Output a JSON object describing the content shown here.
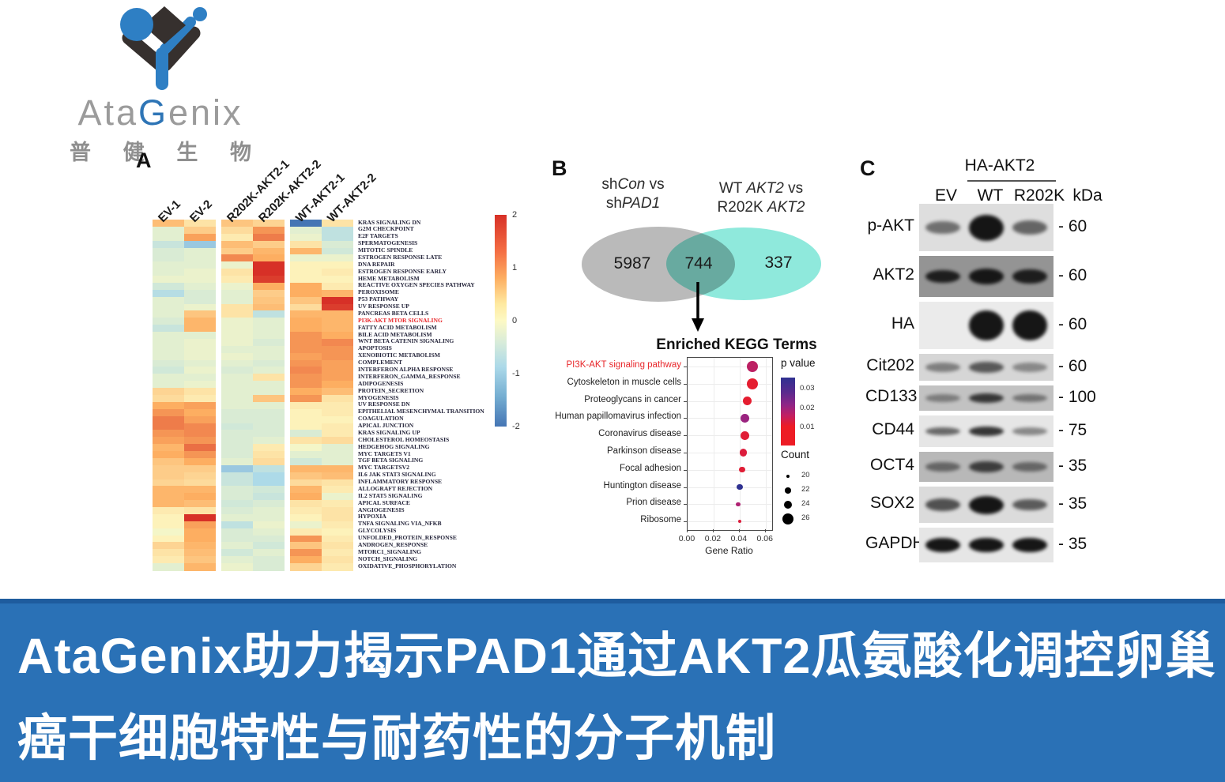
{
  "logo": {
    "brand_pre": "Ata",
    "brand_g": "G",
    "brand_suffix": "enix",
    "chinese_chars": [
      "普",
      "健",
      "生",
      "物"
    ]
  },
  "panels": {
    "a": "A",
    "b": "B",
    "c": "C"
  },
  "colors": {
    "banner_blue": "#2a71b6",
    "banner_edge": "#1e5c9e",
    "logo_blue": "#2e7fc4",
    "logo_dark": "#36302e",
    "highlight_red": "#e8262a",
    "venn_left_gray": "#bababa",
    "venn_right_teal": "#8fe9dc"
  },
  "chart_data": [
    {
      "type": "heatmap",
      "title": "GSEA hallmark heatmap",
      "columns": [
        "EV-1",
        "EV-2",
        "R202K-AKT2-1",
        "R202K-AKT2-2",
        "WT-AKT2-1",
        "WT-AKT2-2"
      ],
      "rows": [
        "KRAS SIGNALING DN",
        "G2M CHECKPOINT",
        "E2F TARGETS",
        "SPERMATOGENESIS",
        "MITOTIC SPINDLE",
        "ESTROGEN RESPONSE LATE",
        "DNA REPAIR",
        "ESTROGEN RESPONSE EARLY",
        "HEME METABOLISM",
        "REACTIVE OXYGEN SPECIES PATHWAY",
        "PEROXISOME",
        "P53 PATHWAY",
        "UV RESPONSE UP",
        "PANCREAS BETA CELLS",
        "PI3K-AKT MTOR SIGNALING",
        "FATTY ACID METABOLISM",
        "BILE ACID METABOLISM",
        "WNT BETA CATENIN SIGNALING",
        "APOPTOSIS",
        "XENOBIOTIC METABOLISM",
        "COMPLEMENT",
        "INTERFERON ALPHA RESPONSE",
        "INTERFERON_GAMMA_RESPONSE",
        "ADIPOGENESIS",
        "PROTEIN_SECRETION",
        "MYOGENESIS",
        "UV RESPONSE DN",
        "EPITHELIAL MESENCHYMAL TRANSITION",
        "COAGULATION",
        "APICAL JUNCTION",
        "KRAS SIGNALING UP",
        "CHOLESTEROL HOMEOSTASIS",
        "HEDGEHOG SIGNALING",
        "MYC TARGETS V1",
        "TGF BETA SIGNALING",
        "MYC TARGETSV2",
        "IL6 JAK STAT3 SIGNALING",
        "INFLAMMATORY RESPONSE",
        "ALLOGRAFT REJECTION",
        "IL2 STAT5 SIGNALING",
        "APICAL SURFACE",
        "ANGIOGENESIS",
        "HYPOXIA",
        "TNFA SIGNALING VIA_NFKB",
        "GLYCOLYSIS",
        "UNFOLDED_PROTEIN_RESPONSE",
        "ANDROGEN_RESPONSE",
        "MTORC1_SIGNALING",
        "NOTCH_SIGNALING",
        "OXIDATIVE_PHOSPHORYLATION"
      ],
      "highlight_row": "PI3K-AKT MTOR SIGNALING",
      "value_range": [
        -2,
        2
      ],
      "colorbar_ticks": [
        "2",
        "1",
        "0",
        "-1",
        "-2"
      ],
      "values": [
        [
          0.8,
          0.3,
          0.7,
          0.5,
          -2.0,
          0.3
        ],
        [
          -0.3,
          0.6,
          0.4,
          1.2,
          -0.3,
          -0.7
        ],
        [
          -0.3,
          1.1,
          0.2,
          1.4,
          -0.2,
          -0.7
        ],
        [
          -0.6,
          -1.1,
          0.8,
          0.6,
          0.3,
          -0.4
        ],
        [
          -0.4,
          -0.3,
          0.6,
          0.9,
          0.9,
          -0.5
        ],
        [
          -0.4,
          -0.3,
          1.3,
          1.0,
          -0.2,
          -0.2
        ],
        [
          -0.3,
          -0.3,
          -0.2,
          2.0,
          0.1,
          0.1
        ],
        [
          -0.3,
          -0.2,
          0.3,
          2.0,
          0.1,
          0.2
        ],
        [
          -0.2,
          -0.2,
          0.2,
          1.9,
          0.1,
          0.1
        ],
        [
          -0.5,
          -0.3,
          -0.2,
          1.0,
          1.0,
          0.2
        ],
        [
          -0.8,
          -0.4,
          -0.3,
          0.6,
          1.0,
          0.9
        ],
        [
          -0.3,
          -0.4,
          -0.3,
          0.7,
          0.7,
          2.0
        ],
        [
          -0.3,
          -0.2,
          0.3,
          0.8,
          0.4,
          1.9
        ],
        [
          -0.3,
          0.7,
          0.3,
          -0.7,
          0.9,
          0.9
        ],
        [
          -0.4,
          0.9,
          -0.2,
          -0.3,
          1.0,
          0.9
        ],
        [
          -0.6,
          0.9,
          -0.2,
          -0.3,
          1.0,
          0.9
        ],
        [
          -0.3,
          -0.3,
          -0.2,
          -0.3,
          1.2,
          1.0
        ],
        [
          -0.3,
          -0.2,
          -0.2,
          -0.4,
          1.2,
          1.3
        ],
        [
          -0.3,
          -0.2,
          -0.3,
          -0.3,
          1.2,
          1.2
        ],
        [
          -0.3,
          -0.2,
          -0.2,
          -0.3,
          1.1,
          1.2
        ],
        [
          -0.4,
          -0.3,
          -0.3,
          -0.4,
          1.2,
          1.1
        ],
        [
          -0.5,
          -0.2,
          -0.4,
          -0.3,
          1.3,
          1.1
        ],
        [
          -0.3,
          -0.3,
          -0.3,
          0.3,
          1.2,
          1.1
        ],
        [
          -0.3,
          -0.2,
          -0.3,
          -0.3,
          1.2,
          1.0
        ],
        [
          0.5,
          0.3,
          -0.3,
          -0.3,
          1.0,
          0.8
        ],
        [
          0.4,
          0.2,
          -0.3,
          0.7,
          1.2,
          0.3
        ],
        [
          1.0,
          1.1,
          -0.3,
          -0.3,
          0.2,
          0.2
        ],
        [
          1.2,
          1.0,
          -0.4,
          -0.4,
          0.1,
          0.2
        ],
        [
          1.4,
          1.1,
          -0.4,
          -0.4,
          0.1,
          0.1
        ],
        [
          1.4,
          1.3,
          -0.5,
          -0.4,
          0.1,
          0.2
        ],
        [
          1.2,
          1.3,
          -0.4,
          -0.4,
          -0.4,
          0.2
        ],
        [
          1.1,
          1.2,
          -0.4,
          -0.3,
          0.3,
          0.4
        ],
        [
          0.9,
          1.5,
          -0.4,
          0.2,
          -0.1,
          -0.3
        ],
        [
          1.0,
          1.2,
          -0.4,
          0.3,
          -0.3,
          -0.3
        ],
        [
          0.7,
          1.0,
          -0.3,
          0.4,
          -0.5,
          -0.3
        ],
        [
          0.6,
          0.6,
          -1.1,
          -0.7,
          0.9,
          0.9
        ],
        [
          0.6,
          0.5,
          -0.6,
          -0.9,
          0.7,
          0.8
        ],
        [
          0.5,
          0.4,
          -0.6,
          -0.9,
          0.4,
          0.3
        ],
        [
          0.9,
          0.9,
          -0.4,
          -0.5,
          0.9,
          0.2
        ],
        [
          0.9,
          1.0,
          -0.4,
          -0.6,
          1.0,
          -0.2
        ],
        [
          0.9,
          0.8,
          -0.5,
          -0.4,
          0.3,
          0.2
        ],
        [
          0.2,
          0.3,
          -0.4,
          -0.3,
          0.2,
          0.3
        ],
        [
          0.1,
          2.0,
          -0.3,
          -0.3,
          0.1,
          0.3
        ],
        [
          0.1,
          1.1,
          -0.7,
          -0.2,
          -0.2,
          0.2
        ],
        [
          -0.1,
          1.0,
          -0.4,
          -0.3,
          0.2,
          0.1
        ],
        [
          0.1,
          1.0,
          -0.4,
          -0.4,
          1.2,
          0.2
        ],
        [
          0.5,
          0.9,
          -0.3,
          -0.5,
          0.7,
          0.3
        ],
        [
          0.3,
          0.8,
          -0.5,
          -0.3,
          1.2,
          0.2
        ],
        [
          0.2,
          0.7,
          -0.3,
          -0.4,
          1.0,
          0.3
        ],
        [
          -0.3,
          0.9,
          -0.2,
          -0.4,
          0.5,
          0.2
        ]
      ]
    },
    {
      "type": "venn",
      "left_label": "shCon vs shPAD1",
      "right_label": "WT AKT2 vs R202K AKT2",
      "left_only": "5987",
      "overlap": "744",
      "right_only": "337"
    },
    {
      "type": "scatter",
      "title": "Enriched KEGG Terms",
      "xlabel": "Gene Ratio",
      "xlim": [
        0,
        0.065
      ],
      "xticks": [
        "0.00",
        "0.02",
        "0.04",
        "0.06"
      ],
      "highlight_category": "PI3K-AKT signaling pathway",
      "points": [
        {
          "label": "PI3K-AKT signaling pathway",
          "gene_ratio": 0.05,
          "count": 26,
          "p": 0.012
        },
        {
          "label": "Cytoskeleton in muscle cells",
          "gene_ratio": 0.05,
          "count": 26,
          "p": 0.003
        },
        {
          "label": "Proteoglycans in cancer",
          "gene_ratio": 0.046,
          "count": 24,
          "p": 0.003
        },
        {
          "label": "Human papillomavirus infection",
          "gene_ratio": 0.044,
          "count": 24,
          "p": 0.018
        },
        {
          "label": "Coronavirus disease",
          "gene_ratio": 0.044,
          "count": 24,
          "p": 0.004
        },
        {
          "label": "Parkinson disease",
          "gene_ratio": 0.043,
          "count": 23,
          "p": 0.005
        },
        {
          "label": "Focal adhesion",
          "gene_ratio": 0.042,
          "count": 22,
          "p": 0.004
        },
        {
          "label": "Huntington disease",
          "gene_ratio": 0.04,
          "count": 22,
          "p": 0.03
        },
        {
          "label": "Prion disease",
          "gene_ratio": 0.039,
          "count": 21,
          "p": 0.015
        },
        {
          "label": "Ribosome",
          "gene_ratio": 0.04,
          "count": 20,
          "p": 0.005
        }
      ],
      "legend": {
        "p_title": "p value",
        "p_ticks": [
          "0.03",
          "0.02",
          "0.01"
        ],
        "count_title": "Count",
        "count_sizes": [
          "20",
          "22",
          "24",
          "26"
        ]
      }
    }
  ],
  "venn_labels": {
    "l1a": "sh",
    "l1b": "Con",
    "l1c": " vs",
    "l2a": "sh",
    "l2b": "PAD1",
    "r1a": "WT ",
    "r1b": "AKT2",
    "r1c": " vs",
    "r2a": "R202K ",
    "r2b": "AKT2"
  },
  "western": {
    "group_label": "HA-AKT2",
    "lanes": [
      "EV",
      "WT",
      "R202K"
    ],
    "unit_label": "kDa",
    "rows": [
      {
        "protein": "p-AKT",
        "kda": "60",
        "bg": 0.13,
        "bands": [
          0.55,
          1.0,
          0.6
        ],
        "thick": [
          0.28,
          0.55,
          0.3
        ]
      },
      {
        "protein": "AKT2",
        "kda": "60",
        "bg": 0.42,
        "bands": [
          0.9,
          0.95,
          0.9
        ],
        "thick": [
          0.32,
          0.38,
          0.36
        ]
      },
      {
        "protein": "HA",
        "kda": "60",
        "bg": 0.08,
        "bands": [
          0.0,
          1.0,
          1.0
        ],
        "thick": [
          0.0,
          0.62,
          0.62
        ]
      },
      {
        "protein": "Cit202",
        "kda": "60",
        "bg": 0.16,
        "bands": [
          0.45,
          0.65,
          0.4
        ],
        "thick": [
          0.34,
          0.4,
          0.34
        ]
      },
      {
        "protein": "CD133",
        "kda": "100",
        "bg": 0.24,
        "bands": [
          0.4,
          0.8,
          0.45
        ],
        "thick": [
          0.3,
          0.38,
          0.3
        ]
      },
      {
        "protein": "CD44",
        "kda": "75",
        "bg": 0.1,
        "bands": [
          0.6,
          0.85,
          0.45
        ],
        "thick": [
          0.26,
          0.32,
          0.24
        ]
      },
      {
        "protein": "OCT4",
        "kda": "35",
        "bg": 0.28,
        "bands": [
          0.5,
          0.75,
          0.5
        ],
        "thick": [
          0.3,
          0.38,
          0.3
        ]
      },
      {
        "protein": "SOX2",
        "kda": "35",
        "bg": 0.14,
        "bands": [
          0.7,
          1.0,
          0.65
        ],
        "thick": [
          0.34,
          0.5,
          0.32
        ]
      },
      {
        "protein": "GAPDH",
        "kda": "35",
        "bg": 0.1,
        "bands": [
          1.0,
          1.0,
          1.0
        ],
        "thick": [
          0.42,
          0.42,
          0.42
        ]
      }
    ]
  },
  "banner": {
    "line1": "AtaGenix助力揭示PAD1通过AKT2瓜氨酸化调控卵巢",
    "line2": "癌干细胞特性与耐药性的分子机制"
  }
}
